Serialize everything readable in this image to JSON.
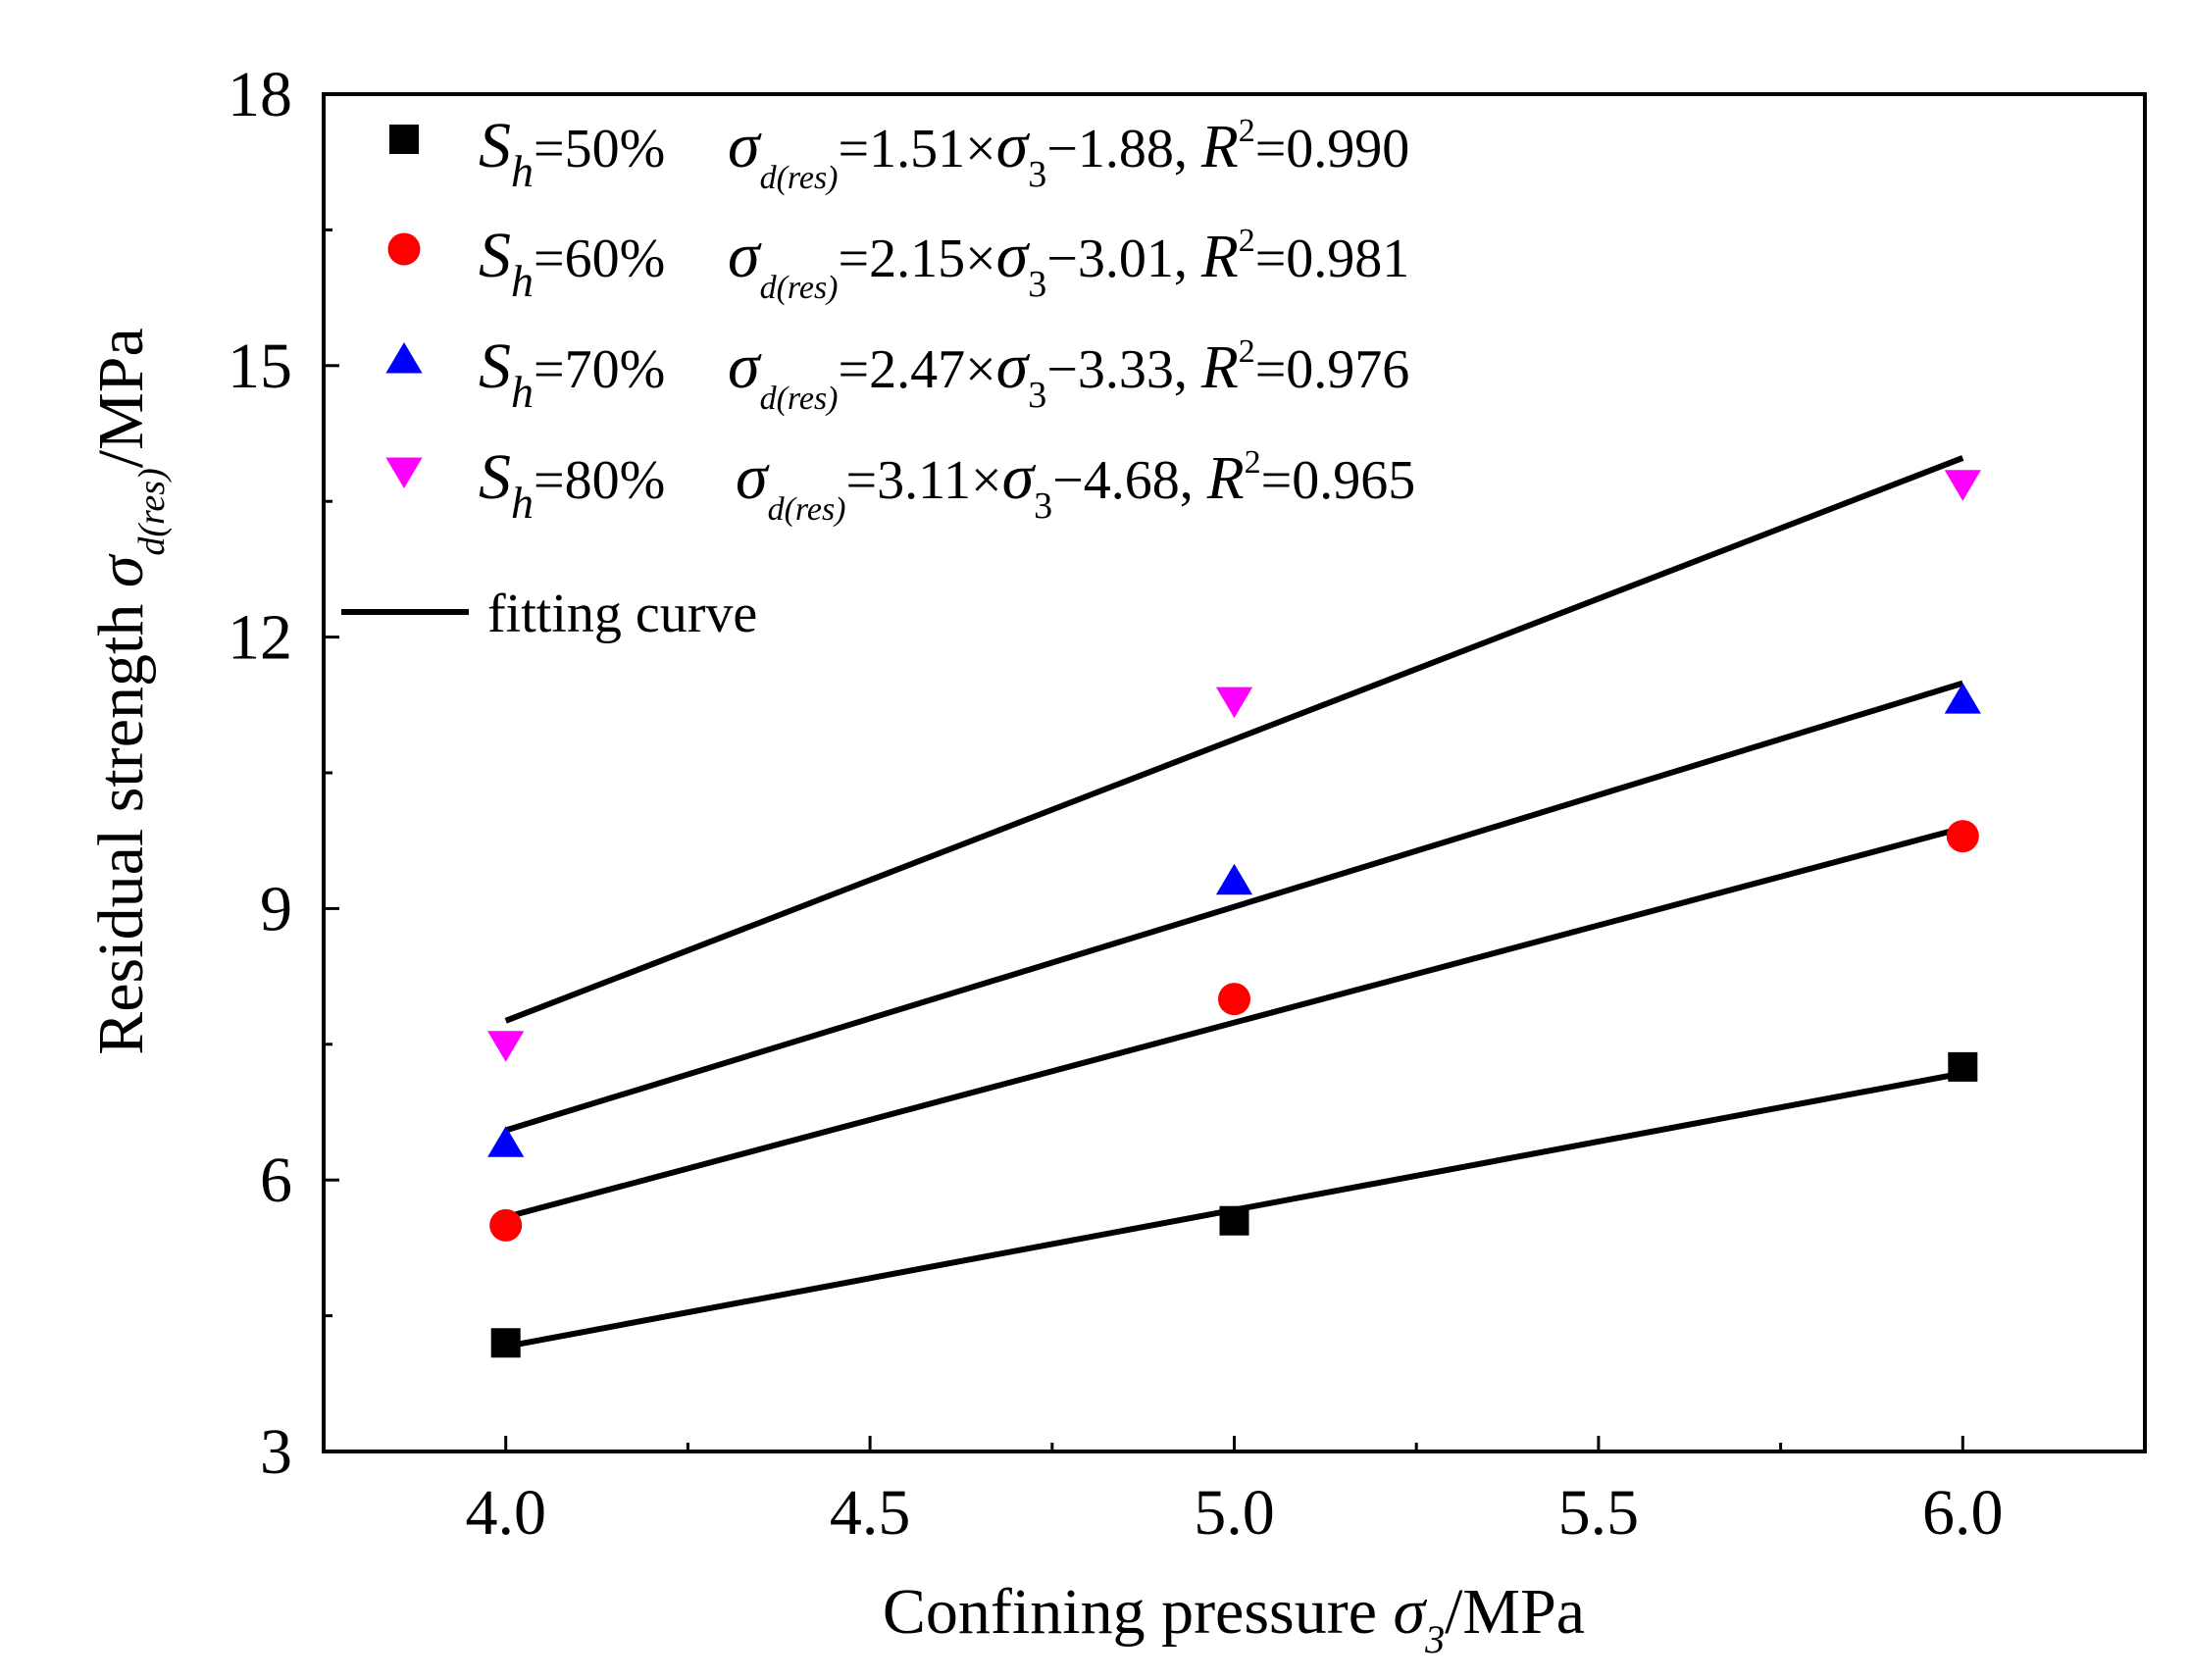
{
  "chart_data": {
    "type": "scatter",
    "xlabel": {
      "prefix": "Confining pressure ",
      "symbol": "σ",
      "sub": "3",
      "suffix": "/MPa"
    },
    "ylabel": {
      "prefix": "Residual strength ",
      "symbol": "σ",
      "sub": "d(res)",
      "suffix": "/MPa"
    },
    "xlim": [
      3.75,
      6.25
    ],
    "ylim": [
      3,
      18
    ],
    "xticks": [
      4.0,
      4.5,
      5.0,
      5.5,
      6.0
    ],
    "xtick_labels": [
      "4.0",
      "4.5",
      "5.0",
      "5.5",
      "6.0"
    ],
    "yticks": [
      3,
      6,
      9,
      12,
      15,
      18
    ],
    "ytick_labels": [
      "3",
      "6",
      "9",
      "12",
      "15",
      "18"
    ],
    "x": [
      4.0,
      5.0,
      6.0
    ],
    "series": [
      {
        "name": "50%",
        "marker": "square",
        "color": "#000000",
        "values": [
          4.2,
          5.55,
          7.25
        ],
        "fit": {
          "slope": 1.51,
          "intercept": -1.88
        },
        "eq": {
          "slope": "1.51",
          "intercept": "1.88",
          "r2": "0.990"
        }
      },
      {
        "name": "60%",
        "marker": "circle",
        "color": "#ff0000",
        "values": [
          5.5,
          8.0,
          9.8
        ],
        "fit": {
          "slope": 2.15,
          "intercept": -3.01
        },
        "eq": {
          "slope": "2.15",
          "intercept": "3.01",
          "r2": "0.981"
        }
      },
      {
        "name": "70%",
        "marker": "triangle-up",
        "color": "#0000ff",
        "values": [
          6.4,
          9.3,
          11.3
        ],
        "fit": {
          "slope": 2.47,
          "intercept": -3.33
        },
        "eq": {
          "slope": "2.47",
          "intercept": "3.33",
          "r2": "0.976"
        }
      },
      {
        "name": "80%",
        "marker": "triangle-down",
        "color": "#ff00ff",
        "values": [
          7.5,
          11.3,
          13.7
        ],
        "fit": {
          "slope": 3.11,
          "intercept": -4.68
        },
        "eq": {
          "slope": "3.11",
          "intercept": "4.68",
          "r2": "0.965"
        }
      }
    ],
    "legend_line": "fitting curve",
    "legend_position": "top-left",
    "fit_line_color": "#000000",
    "grid": false
  }
}
